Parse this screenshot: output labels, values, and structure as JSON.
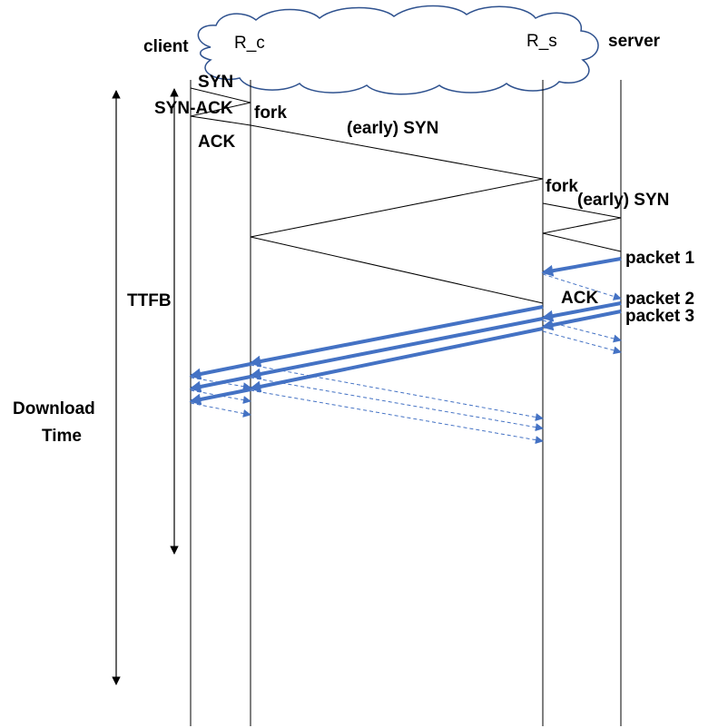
{
  "hosts": {
    "client": "client",
    "relay_client": "R_c",
    "relay_server": "R_s",
    "server": "server"
  },
  "messages": {
    "syn": "SYN",
    "syn_ack": "SYN-ACK",
    "ack": "ACK",
    "fork_client_side": "fork",
    "early_syn_1": "(early) SYN",
    "fork_server_side": "fork",
    "early_syn_2": "(early) SYN",
    "packet1": "packet 1",
    "ack2": "ACK",
    "packet2": "packet 2",
    "packet3": "packet 3"
  },
  "intervals": {
    "ttfb": "TTFB",
    "download_line1": "Download",
    "download_line2": "Time"
  },
  "colors": {
    "data_arrow": "#4472C4",
    "cloud_stroke": "#2F528F",
    "line": "#000000"
  }
}
